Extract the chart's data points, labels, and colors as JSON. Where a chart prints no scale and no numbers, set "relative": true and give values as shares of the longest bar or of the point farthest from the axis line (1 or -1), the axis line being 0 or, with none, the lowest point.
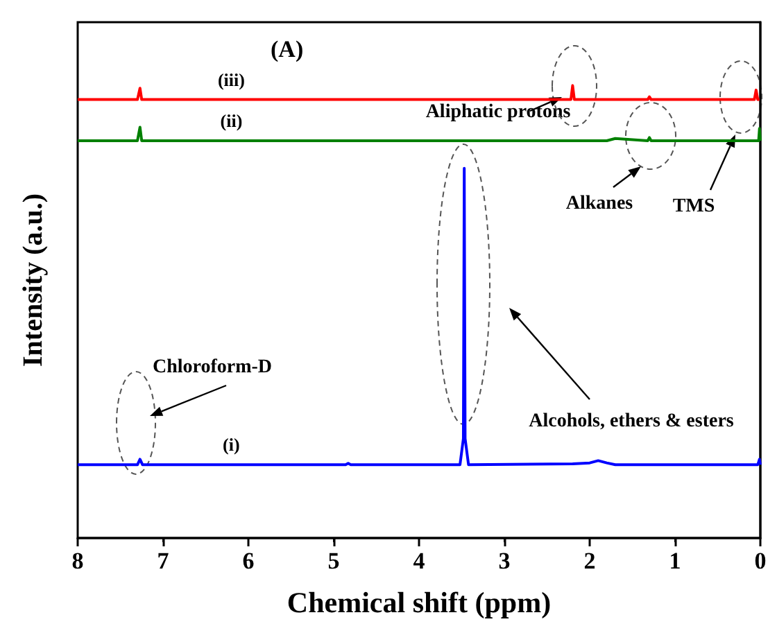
{
  "chart_data": {
    "type": "line",
    "title": "(A)",
    "xlabel": "Chemical shift (ppm)",
    "ylabel": "Intensity (a.u.)",
    "relative": true,
    "xlim": [
      8,
      0
    ],
    "xticks": [
      8,
      7,
      6,
      5,
      4,
      3,
      2,
      1,
      0
    ],
    "grid": false,
    "legend": false,
    "marker": "none",
    "line_style": "solid",
    "series": [
      {
        "name": "(iii)",
        "color": "#ff0000",
        "x": [
          8,
          7.3,
          7.27,
          7.25,
          5,
          4,
          3.5,
          2.22,
          2.2,
          2.18,
          1.32,
          1.3,
          1.28,
          1.0,
          0.07,
          0.05,
          0.03,
          0.01,
          0
        ],
        "values": [
          0.969,
          0.969,
          0.994,
          0.969,
          0.969,
          0.969,
          0.969,
          0.969,
          1,
          0.969,
          0.969,
          0.975,
          0.969,
          0.969,
          0.969,
          0.99,
          0.969,
          0.969,
          0.969
        ]
      },
      {
        "name": "(ii)",
        "color": "#008000",
        "x": [
          8,
          7.3,
          7.27,
          7.25,
          2.2,
          1.8,
          1.7,
          1.32,
          1.3,
          1.28,
          0.02,
          0.01,
          0
        ],
        "values": [
          0.878,
          0.878,
          0.908,
          0.878,
          0.878,
          0.878,
          0.883,
          0.878,
          0.885,
          0.878,
          0.878,
          0.905,
          0.878
        ]
      },
      {
        "name": "(i)",
        "color": "#0000ff",
        "x": [
          8,
          7.3,
          7.27,
          7.24,
          4.86,
          4.83,
          4.8,
          3.52,
          3.48,
          3.47,
          3.46,
          3.42,
          2.2,
          2.0,
          1.9,
          1.8,
          1.7,
          0.03,
          0.01,
          0
        ],
        "values": [
          0.162,
          0.162,
          0.174,
          0.162,
          0.162,
          0.165,
          0.162,
          0.162,
          0.22,
          0.817,
          0.22,
          0.162,
          0.164,
          0.166,
          0.171,
          0.166,
          0.162,
          0.162,
          0.174,
          0.162
        ]
      }
    ],
    "annotations": [
      "Aliphatic protons",
      "Alkanes",
      "TMS",
      "Chloroform-D",
      "Alcohols, ethers & esters"
    ]
  }
}
